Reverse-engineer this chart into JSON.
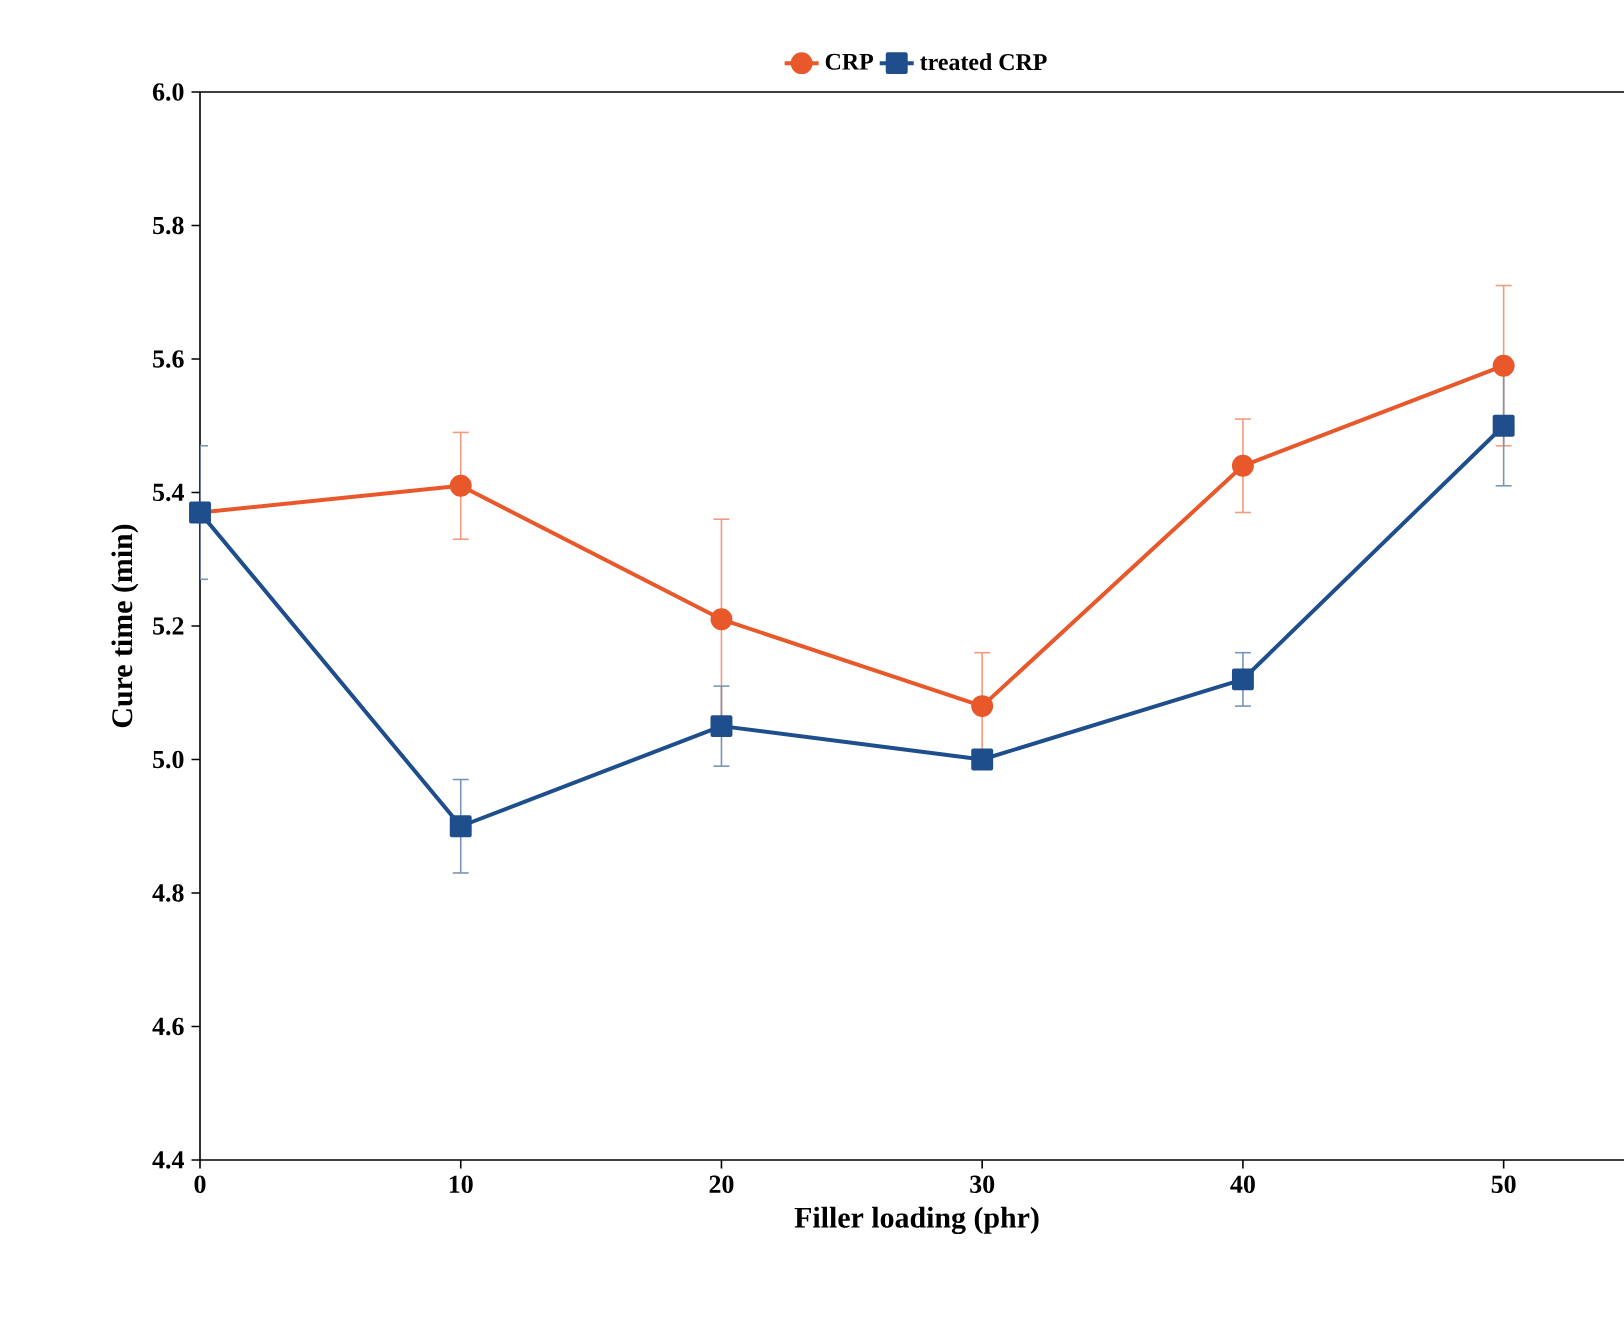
{
  "chart_data": {
    "type": "line",
    "xlabel": "Filler loading (phr)",
    "ylabel": "Cure time (min)",
    "x": [
      0,
      10,
      20,
      30,
      40,
      50
    ],
    "series": [
      {
        "name": "CRP",
        "color": "#e8582a",
        "marker": "circle",
        "values": [
          5.37,
          5.41,
          5.21,
          5.08,
          5.44,
          5.59
        ],
        "errors": [
          null,
          0.08,
          0.15,
          0.08,
          0.07,
          0.12
        ]
      },
      {
        "name": "treated CRP",
        "color": "#1f4e8c",
        "marker": "square",
        "values": [
          5.37,
          4.9,
          5.05,
          5.0,
          5.12,
          5.5
        ],
        "errors": [
          0.1,
          0.07,
          0.06,
          0.01,
          0.04,
          0.09
        ]
      }
    ],
    "xlim": [
      0,
      55
    ],
    "ylim": [
      4.4,
      6.0
    ],
    "xticks": [
      0,
      10,
      20,
      30,
      40,
      50
    ],
    "yticks": [
      {
        "value": 4.4,
        "label": "4.4"
      },
      {
        "value": 4.6,
        "label": "4.6"
      },
      {
        "value": 4.8,
        "label": "4.8"
      },
      {
        "value": 5.0,
        "label": "5.0"
      },
      {
        "value": 5.2,
        "label": "5.2"
      },
      {
        "value": 5.4,
        "label": "5.4"
      },
      {
        "value": 5.6,
        "label": "5.6"
      },
      {
        "value": 5.8,
        "label": "5.8"
      },
      {
        "value": 6.0,
        "label": "6.0"
      }
    ],
    "legend": "top",
    "grid": false,
    "line_style": "solid"
  }
}
